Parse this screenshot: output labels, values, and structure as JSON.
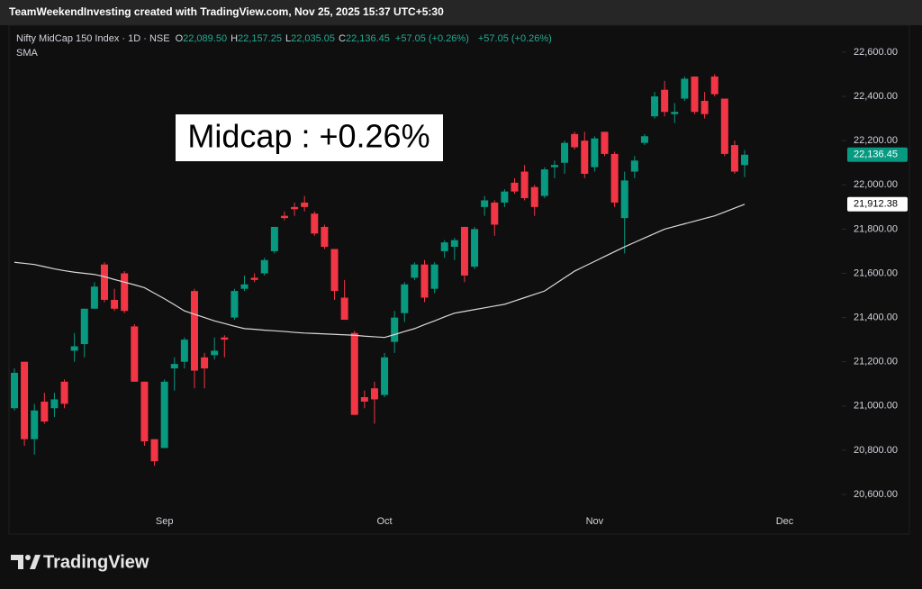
{
  "top_bar": "TeamWeekendInvesting created with TradingView.com, Nov 25, 2025 15:37 UTC+5:30",
  "footer": {
    "brand": "TradingView"
  },
  "chart_data": {
    "type": "candlestick",
    "legend": {
      "symbol": "Nifty MidCap 150 Index · 1D · NSE",
      "fields": [
        {
          "key": "O",
          "value": "22,089.50"
        },
        {
          "key": "H",
          "value": "22,157.25"
        },
        {
          "key": "L",
          "value": "22,035.05"
        },
        {
          "key": "C",
          "value": "22,136.45"
        }
      ],
      "change": "+57.05 (+0.26%)",
      "change_2": "+57.05 (+0.26%)"
    },
    "annotation": "Midcap : +0.26%",
    "up_color": "#089981",
    "down_color": "#f23645",
    "categories": [
      null,
      null,
      null,
      null,
      null,
      null,
      null,
      null,
      null,
      null,
      null,
      null,
      null,
      null,
      null,
      "Sep",
      null,
      null,
      null,
      null,
      null,
      null,
      null,
      null,
      null,
      null,
      null,
      null,
      null,
      null,
      null,
      null,
      null,
      null,
      null,
      null,
      null,
      "Oct",
      null,
      null,
      null,
      null,
      null,
      null,
      null,
      null,
      null,
      null,
      null,
      null,
      null,
      null,
      null,
      null,
      null,
      null,
      null,
      null,
      "Nov",
      null,
      null,
      null,
      null,
      null,
      null,
      null,
      null,
      null,
      null,
      null,
      null,
      null,
      null,
      null,
      null,
      null,
      null,
      "Dec",
      null,
      null,
      null,
      null,
      null
    ],
    "open": [
      20990,
      21200,
      20850,
      21020,
      20990,
      21110,
      21250,
      21280,
      21440,
      21640,
      21480,
      21600,
      21360,
      21110,
      20850,
      20810,
      21170,
      21200,
      21520,
      21220,
      21230,
      21310,
      21400,
      21530,
      21580,
      21600,
      21700,
      21860,
      21900,
      21920,
      21870,
      21810,
      21710,
      21490,
      21330,
      21040,
      21080,
      21050,
      21290,
      21420,
      21580,
      21640,
      21530,
      21700,
      21720,
      21810,
      21630,
      21900,
      21920,
      21920,
      22010,
      22060,
      21990,
      21950,
      22080,
      22100,
      22230,
      22200,
      22080,
      22240,
      22140,
      21850,
      22060,
      22190,
      22310,
      22430,
      22320,
      22390,
      22490,
      22380,
      22490,
      22390,
      22180,
      22089.5,
      null,
      null,
      null,
      null,
      null,
      null,
      null,
      null,
      null
    ],
    "high": [
      21170,
      21200,
      21010,
      21060,
      21060,
      21120,
      21330,
      21440,
      21560,
      21650,
      21530,
      21610,
      21370,
      21110,
      20850,
      21120,
      21220,
      21310,
      21530,
      21240,
      21310,
      21320,
      21530,
      21590,
      21600,
      21670,
      21810,
      21880,
      21920,
      21950,
      21880,
      21820,
      21710,
      21570,
      21340,
      21070,
      21110,
      21240,
      21430,
      21560,
      21650,
      21660,
      21650,
      21750,
      21760,
      21810,
      21810,
      21950,
      21930,
      21980,
      22030,
      22090,
      22000,
      22080,
      22110,
      22200,
      22240,
      22240,
      22220,
      22240,
      22150,
      22060,
      22130,
      22230,
      22420,
      22470,
      22370,
      22490,
      22490,
      22420,
      22500,
      22390,
      22200,
      22157.25,
      null,
      null,
      null,
      null,
      null,
      null,
      null,
      null,
      null
    ],
    "low": [
      20980,
      20820,
      20780,
      20920,
      20950,
      20990,
      21200,
      21220,
      21440,
      21470,
      21430,
      21420,
      21110,
      20820,
      20730,
      20810,
      21070,
      21170,
      21080,
      21080,
      21210,
      21220,
      21390,
      21520,
      21560,
      21590,
      21690,
      21840,
      21860,
      21880,
      21770,
      21710,
      21480,
      21390,
      20960,
      20990,
      20920,
      21040,
      21240,
      21380,
      21570,
      21470,
      21510,
      21670,
      21660,
      21560,
      21620,
      21860,
      21770,
      21900,
      21960,
      21930,
      21860,
      21940,
      22030,
      22050,
      22160,
      22030,
      22060,
      22130,
      21900,
      21690,
      22030,
      22180,
      22300,
      22310,
      22280,
      22380,
      22320,
      22300,
      22400,
      22130,
      22050,
      22035.05,
      null,
      null,
      null,
      null,
      null,
      null,
      null,
      null,
      null
    ],
    "close": [
      21150,
      20850,
      20980,
      20930,
      21030,
      21010,
      21270,
      21440,
      21540,
      21480,
      21440,
      21430,
      21110,
      20840,
      20750,
      21110,
      21190,
      21300,
      21160,
      21170,
      21250,
      21300,
      21520,
      21550,
      21570,
      21660,
      21810,
      21850,
      21890,
      21900,
      21780,
      21720,
      21520,
      21390,
      20960,
      21020,
      21030,
      21220,
      21400,
      21550,
      21640,
      21490,
      21640,
      21740,
      21750,
      21590,
      21800,
      21930,
      21820,
      21970,
      21970,
      21940,
      21900,
      22070,
      22090,
      22190,
      22170,
      22050,
      22210,
      22140,
      21920,
      22020,
      22110,
      22220,
      22400,
      22330,
      22330,
      22480,
      22330,
      22320,
      22410,
      22140,
      22060,
      22136.45,
      null,
      null,
      null,
      null,
      null,
      null,
      null,
      null,
      null
    ],
    "overlays": [
      {
        "name": "SMA",
        "color": "#d9d9d9",
        "values": [
          21650,
          21645,
          21640,
          21630,
          21620,
          21612,
          21605,
          21600,
          21595,
          21585,
          21572,
          21560,
          21548,
          21535,
          21510,
          21485,
          21458,
          21430,
          21415,
          21400,
          21385,
          21373,
          21361,
          21350,
          21347,
          21343,
          21340,
          21337,
          21333,
          21330,
          21328,
          21326,
          21324,
          21322,
          21320,
          21316,
          21313,
          21310,
          21323,
          21337,
          21350,
          21368,
          21385,
          21403,
          21420,
          21428,
          21436,
          21444,
          21452,
          21460,
          21475,
          21490,
          21505,
          21520,
          21550,
          21580,
          21610,
          21632,
          21654,
          21676,
          21698,
          21720,
          21740,
          21760,
          21780,
          21800,
          21812,
          21824,
          21836,
          21848,
          21860,
          21877,
          21895,
          21912.38,
          null,
          null,
          null,
          null,
          null,
          null,
          null,
          null,
          null
        ],
        "last_value": {
          "value": 21912.38,
          "label": "21,912.38"
        }
      }
    ],
    "last_price": {
      "value": 22136.45,
      "label": "22,136.45"
    },
    "ylim": [
      20425,
      22722
    ],
    "yticks": [
      {
        "value": 20600,
        "label": "20,600.00"
      },
      {
        "value": 20800,
        "label": "20,800.00"
      },
      {
        "value": 21000,
        "label": "21,000.00"
      },
      {
        "value": 21200,
        "label": "21,200.00"
      },
      {
        "value": 21400,
        "label": "21,400.00"
      },
      {
        "value": 21600,
        "label": "21,600.00"
      },
      {
        "value": 21800,
        "label": "21,800.00"
      },
      {
        "value": 22000,
        "label": "22,000.00"
      },
      {
        "value": 22200,
        "label": "22,200.00"
      },
      {
        "value": 22400,
        "label": "22,400.00"
      },
      {
        "value": 22600,
        "label": "22,600.00"
      }
    ],
    "grid": false
  }
}
